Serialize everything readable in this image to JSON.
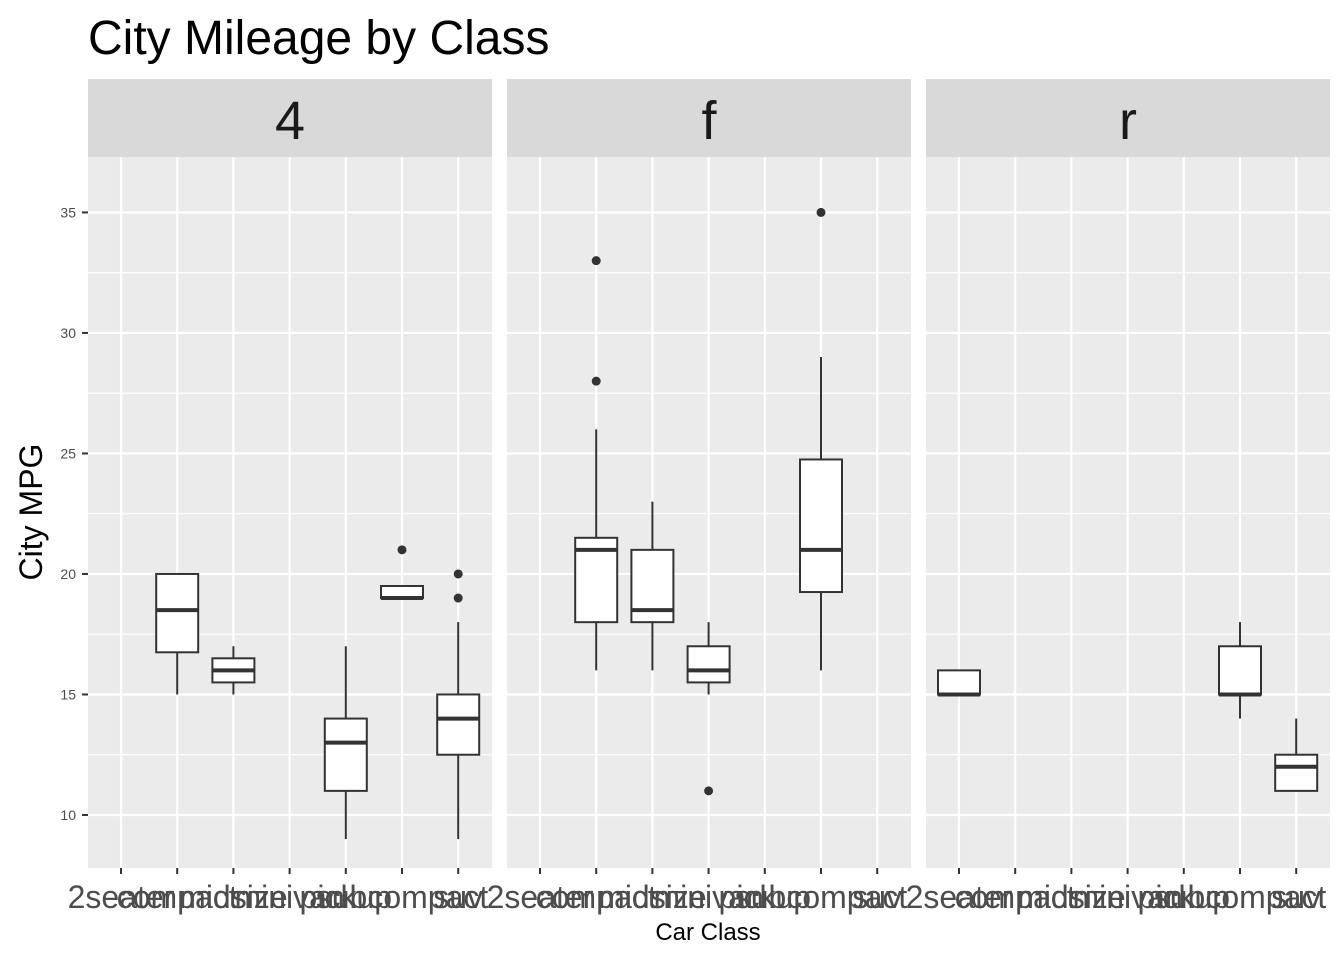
{
  "chart_data": {
    "type": "boxplot",
    "title": "City Mileage by Class",
    "xlabel": "Car Class",
    "ylabel": "City MPG",
    "categories": [
      "2seater",
      "compact",
      "midsize",
      "minivan",
      "pickup",
      "subcompact",
      "suv"
    ],
    "ylim": [
      7.8,
      37.3
    ],
    "yticks": [
      10,
      15,
      20,
      25,
      30,
      35
    ],
    "grid": true,
    "facets": [
      {
        "label": "4",
        "boxes": [
          {
            "class": "compact",
            "lower": 15,
            "q1": 16.75,
            "median": 18.5,
            "q3": 20,
            "upper": 20,
            "outliers": []
          },
          {
            "class": "midsize",
            "lower": 15,
            "q1": 15.5,
            "median": 16,
            "q3": 16.5,
            "upper": 17,
            "outliers": []
          },
          {
            "class": "pickup",
            "lower": 9,
            "q1": 11,
            "median": 13,
            "q3": 14,
            "upper": 17,
            "outliers": []
          },
          {
            "class": "subcompact",
            "lower": 19,
            "q1": 19,
            "median": 19,
            "q3": 19.5,
            "upper": 19.5,
            "outliers": [
              21
            ]
          },
          {
            "class": "suv",
            "lower": 9,
            "q1": 12.5,
            "median": 14,
            "q3": 15,
            "upper": 18,
            "outliers": [
              19,
              20
            ]
          }
        ]
      },
      {
        "label": "f",
        "boxes": [
          {
            "class": "compact",
            "lower": 16,
            "q1": 18,
            "median": 21,
            "q3": 21.5,
            "upper": 26,
            "outliers": [
              28,
              33
            ]
          },
          {
            "class": "midsize",
            "lower": 16,
            "q1": 18,
            "median": 18.5,
            "q3": 21,
            "upper": 23,
            "outliers": []
          },
          {
            "class": "minivan",
            "lower": 15,
            "q1": 15.5,
            "median": 16,
            "q3": 17,
            "upper": 18,
            "outliers": [
              11
            ]
          },
          {
            "class": "subcompact",
            "lower": 16,
            "q1": 19.25,
            "median": 21,
            "q3": 24.75,
            "upper": 29,
            "outliers": [
              35
            ]
          }
        ]
      },
      {
        "label": "r",
        "boxes": [
          {
            "class": "2seater",
            "lower": 15,
            "q1": 15,
            "median": 15,
            "q3": 16,
            "upper": 16,
            "outliers": []
          },
          {
            "class": "subcompact",
            "lower": 14,
            "q1": 15,
            "median": 15,
            "q3": 17,
            "upper": 18,
            "outliers": []
          },
          {
            "class": "suv",
            "lower": 11,
            "q1": 11,
            "median": 12,
            "q3": 12.5,
            "upper": 14,
            "outliers": []
          }
        ]
      }
    ],
    "colors": {
      "panel_bg": "#ebebeb",
      "strip_bg": "#d9d9d9",
      "grid": "#ffffff",
      "box_line": "#333333",
      "box_fill": "#ffffff",
      "tick_text": "#4d4d4d",
      "text": "#000000"
    }
  }
}
